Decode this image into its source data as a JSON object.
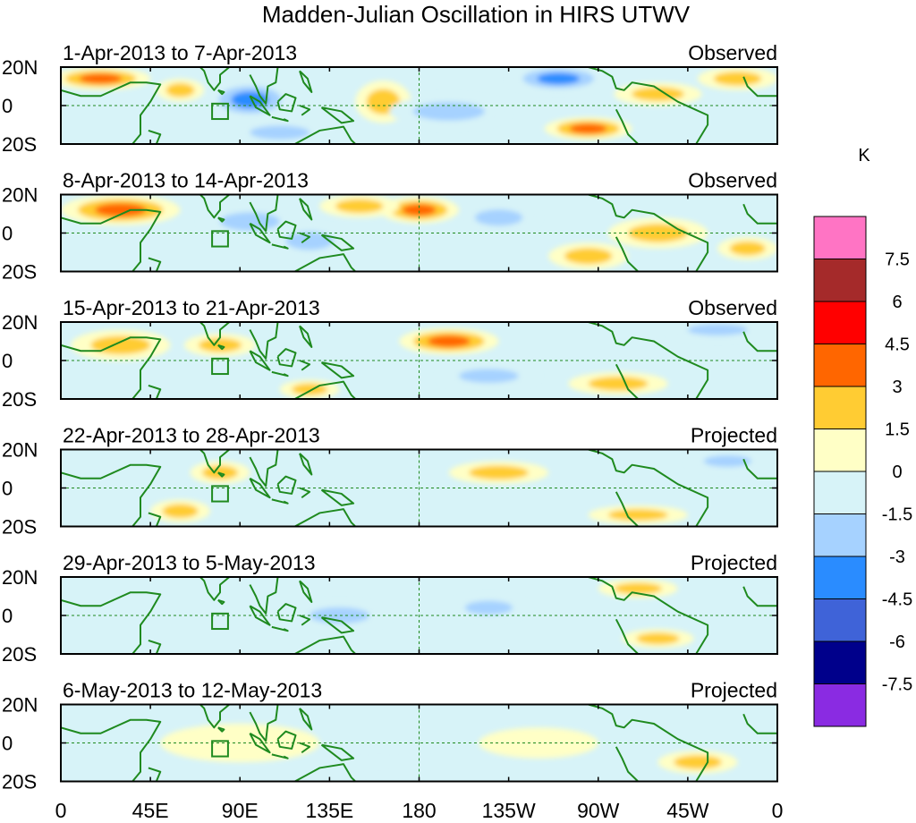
{
  "chart_data": {
    "type": "heatmap",
    "title": "Madden-Julian Oscillation in HIRS UTWV",
    "units": "K",
    "x_tick_labels": [
      "0",
      "45E",
      "90E",
      "135E",
      "180",
      "135W",
      "90W",
      "45W",
      "0"
    ],
    "x_tick_lons": [
      0,
      45,
      90,
      135,
      180,
      225,
      270,
      315,
      360
    ],
    "y_tick_labels": [
      "20N",
      "0",
      "20S"
    ],
    "y_tick_lats": [
      20,
      0,
      -20
    ],
    "xlim": [
      0,
      360
    ],
    "ylim": [
      -20,
      20
    ],
    "grid": "dashed equator and 180 meridian",
    "legend": "colorbar right",
    "colorbar": {
      "levels": [
        "7.5",
        "6",
        "4.5",
        "3",
        "1.5",
        "0",
        "-1.5",
        "-3",
        "-4.5",
        "-6",
        "-7.5"
      ],
      "colors": [
        "#ff74c4",
        "#a52a2a",
        "#ff0000",
        "#ff6600",
        "#ffcc33",
        "#ffffc6",
        "#d7f3f8",
        "#a6d2ff",
        "#2a8cff",
        "#3f63d8",
        "#00008b",
        "#8a2be2"
      ]
    },
    "panels": [
      {
        "period": "1-Apr-2013 to 7-Apr-2013",
        "status": "Observed",
        "anomalies": [
          {
            "lon": 20,
            "lat": 14,
            "rx": 25,
            "ry": 6,
            "value": 3.5
          },
          {
            "lon": 60,
            "lat": 8,
            "rx": 12,
            "ry": 6,
            "value": 2
          },
          {
            "lon": 95,
            "lat": 3,
            "rx": 22,
            "ry": 10,
            "value": -4
          },
          {
            "lon": 110,
            "lat": -14,
            "rx": 25,
            "ry": 6,
            "value": -3
          },
          {
            "lon": 162,
            "lat": 2,
            "rx": 14,
            "ry": 11,
            "value": 2
          },
          {
            "lon": 195,
            "lat": -3,
            "rx": 30,
            "ry": 8,
            "value": -2
          },
          {
            "lon": 250,
            "lat": 14,
            "rx": 25,
            "ry": 7,
            "value": -4.5
          },
          {
            "lon": 265,
            "lat": -12,
            "rx": 22,
            "ry": 6,
            "value": 3.5
          },
          {
            "lon": 300,
            "lat": 6,
            "rx": 22,
            "ry": 6,
            "value": 2
          },
          {
            "lon": 340,
            "lat": 14,
            "rx": 20,
            "ry": 6,
            "value": 3
          }
        ]
      },
      {
        "period": "8-Apr-2013 to 14-Apr-2013",
        "status": "Observed",
        "anomalies": [
          {
            "lon": 30,
            "lat": 12,
            "rx": 30,
            "ry": 8,
            "value": 3.5
          },
          {
            "lon": 95,
            "lat": 6,
            "rx": 25,
            "ry": 8,
            "value": -2.5
          },
          {
            "lon": 125,
            "lat": -4,
            "rx": 20,
            "ry": 8,
            "value": -2
          },
          {
            "lon": 180,
            "lat": 12,
            "rx": 20,
            "ry": 7,
            "value": 3.5
          },
          {
            "lon": 150,
            "lat": 14,
            "rx": 20,
            "ry": 6,
            "value": 2
          },
          {
            "lon": 220,
            "lat": 8,
            "rx": 20,
            "ry": 7,
            "value": -2
          },
          {
            "lon": 265,
            "lat": -12,
            "rx": 20,
            "ry": 7,
            "value": 3
          },
          {
            "lon": 300,
            "lat": 0,
            "rx": 25,
            "ry": 8,
            "value": 2
          },
          {
            "lon": 345,
            "lat": -8,
            "rx": 15,
            "ry": 6,
            "value": 3
          }
        ]
      },
      {
        "period": "15-Apr-2013 to 21-Apr-2013",
        "status": "Observed",
        "anomalies": [
          {
            "lon": 30,
            "lat": 8,
            "rx": 25,
            "ry": 8,
            "value": 2
          },
          {
            "lon": 80,
            "lat": 8,
            "rx": 18,
            "ry": 6,
            "value": 3
          },
          {
            "lon": 125,
            "lat": -15,
            "rx": 15,
            "ry": 5,
            "value": 3
          },
          {
            "lon": 195,
            "lat": 10,
            "rx": 25,
            "ry": 7,
            "value": 3.5
          },
          {
            "lon": 215,
            "lat": -8,
            "rx": 25,
            "ry": 6,
            "value": -2
          },
          {
            "lon": 280,
            "lat": -12,
            "rx": 25,
            "ry": 6,
            "value": 2.5
          },
          {
            "lon": 330,
            "lat": 16,
            "rx": 25,
            "ry": 5,
            "value": -3
          }
        ]
      },
      {
        "period": "22-Apr-2013 to 28-Apr-2013",
        "status": "Projected",
        "anomalies": [
          {
            "lon": 80,
            "lat": 8,
            "rx": 15,
            "ry": 6,
            "value": 2
          },
          {
            "lon": 60,
            "lat": -12,
            "rx": 15,
            "ry": 6,
            "value": 2
          },
          {
            "lon": 220,
            "lat": 8,
            "rx": 25,
            "ry": 6,
            "value": 2
          },
          {
            "lon": 290,
            "lat": -14,
            "rx": 25,
            "ry": 5,
            "value": 2
          },
          {
            "lon": 335,
            "lat": 14,
            "rx": 20,
            "ry": 5,
            "value": -1.8
          }
        ]
      },
      {
        "period": "29-Apr-2013 to 5-May-2013",
        "status": "Projected",
        "anomalies": [
          {
            "lon": 140,
            "lat": 0,
            "rx": 25,
            "ry": 7,
            "value": -1.8
          },
          {
            "lon": 215,
            "lat": 4,
            "rx": 20,
            "ry": 6,
            "value": -1.7
          },
          {
            "lon": 290,
            "lat": 14,
            "rx": 20,
            "ry": 5,
            "value": 1.8
          },
          {
            "lon": 300,
            "lat": -12,
            "rx": 18,
            "ry": 5,
            "value": 1.7
          }
        ]
      },
      {
        "period": "6-May-2013 to 12-May-2013",
        "status": "Projected",
        "anomalies": [
          {
            "lon": 90,
            "lat": 0,
            "rx": 40,
            "ry": 10,
            "value": 1
          },
          {
            "lon": 160,
            "lat": -10,
            "rx": 25,
            "ry": 6,
            "value": -1
          },
          {
            "lon": 240,
            "lat": 0,
            "rx": 30,
            "ry": 8,
            "value": 1
          },
          {
            "lon": 320,
            "lat": -10,
            "rx": 20,
            "ry": 6,
            "value": 1.6
          }
        ]
      }
    ]
  }
}
